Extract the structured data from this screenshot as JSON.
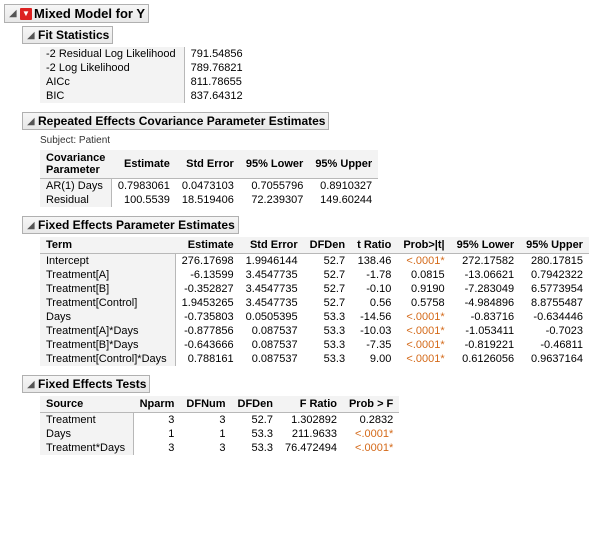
{
  "main": {
    "title": "Mixed Model for Y"
  },
  "fitStats": {
    "title": "Fit Statistics",
    "rows": [
      {
        "label": "-2 Residual Log Likelihood",
        "value": "791.54856"
      },
      {
        "label": "-2 Log Likelihood",
        "value": "789.76821"
      },
      {
        "label": "AICc",
        "value": "811.78655"
      },
      {
        "label": "BIC",
        "value": "837.64312"
      }
    ]
  },
  "repEffects": {
    "title": "Repeated Effects Covariance Parameter Estimates",
    "subject": "Subject: Patient",
    "headers": {
      "param1": "Covariance",
      "param2": "Parameter",
      "est": "Estimate",
      "se": "Std Error",
      "lo": "95% Lower",
      "hi": "95% Upper"
    },
    "rows": [
      {
        "param": "AR(1) Days",
        "est": "0.7983061",
        "se": "0.0473103",
        "lo": "0.7055796",
        "hi": "0.8910327"
      },
      {
        "param": "Residual",
        "est": "100.5539",
        "se": "18.519406",
        "lo": "72.239307",
        "hi": "149.60244"
      }
    ]
  },
  "fixedParam": {
    "title": "Fixed Effects Parameter Estimates",
    "headers": {
      "term": "Term",
      "est": "Estimate",
      "se": "Std Error",
      "dfden": "DFDen",
      "t": "t Ratio",
      "p": "Prob>|t|",
      "lo": "95% Lower",
      "hi": "95% Upper"
    },
    "rows": [
      {
        "term": "Intercept",
        "est": "276.17698",
        "se": "1.9946144",
        "dfden": "52.7",
        "t": "138.46",
        "p": "<.0001*",
        "sig": true,
        "lo": "272.17582",
        "hi": "280.17815"
      },
      {
        "term": "Treatment[A]",
        "est": "-6.13599",
        "se": "3.4547735",
        "dfden": "52.7",
        "t": "-1.78",
        "p": "0.0815",
        "sig": false,
        "lo": "-13.06621",
        "hi": "0.7942322"
      },
      {
        "term": "Treatment[B]",
        "est": "-0.352827",
        "se": "3.4547735",
        "dfden": "52.7",
        "t": "-0.10",
        "p": "0.9190",
        "sig": false,
        "lo": "-7.283049",
        "hi": "6.5773954"
      },
      {
        "term": "Treatment[Control]",
        "est": "1.9453265",
        "se": "3.4547735",
        "dfden": "52.7",
        "t": "0.56",
        "p": "0.5758",
        "sig": false,
        "lo": "-4.984896",
        "hi": "8.8755487"
      },
      {
        "term": "Days",
        "est": "-0.735803",
        "se": "0.0505395",
        "dfden": "53.3",
        "t": "-14.56",
        "p": "<.0001*",
        "sig": true,
        "lo": "-0.83716",
        "hi": "-0.634446"
      },
      {
        "term": "Treatment[A]*Days",
        "est": "-0.877856",
        "se": "0.087537",
        "dfden": "53.3",
        "t": "-10.03",
        "p": "<.0001*",
        "sig": true,
        "lo": "-1.053411",
        "hi": "-0.7023"
      },
      {
        "term": "Treatment[B]*Days",
        "est": "-0.643666",
        "se": "0.087537",
        "dfden": "53.3",
        "t": "-7.35",
        "p": "<.0001*",
        "sig": true,
        "lo": "-0.819221",
        "hi": "-0.46811"
      },
      {
        "term": "Treatment[Control]*Days",
        "est": "0.788161",
        "se": "0.087537",
        "dfden": "53.3",
        "t": "9.00",
        "p": "<.0001*",
        "sig": true,
        "lo": "0.6126056",
        "hi": "0.9637164"
      }
    ]
  },
  "fixedTests": {
    "title": "Fixed Effects Tests",
    "headers": {
      "source": "Source",
      "nparm": "Nparm",
      "dfnum": "DFNum",
      "dfden": "DFDen",
      "f": "F Ratio",
      "p": "Prob > F"
    },
    "rows": [
      {
        "source": "Treatment",
        "nparm": "3",
        "dfnum": "3",
        "dfden": "52.7",
        "f": "1.302892",
        "p": "0.2832",
        "sig": false
      },
      {
        "source": "Days",
        "nparm": "1",
        "dfnum": "1",
        "dfden": "53.3",
        "f": "211.9633",
        "p": "<.0001*",
        "sig": true
      },
      {
        "source": "Treatment*Days",
        "nparm": "3",
        "dfnum": "3",
        "dfden": "53.3",
        "f": "76.472494",
        "p": "<.0001*",
        "sig": true
      }
    ]
  }
}
